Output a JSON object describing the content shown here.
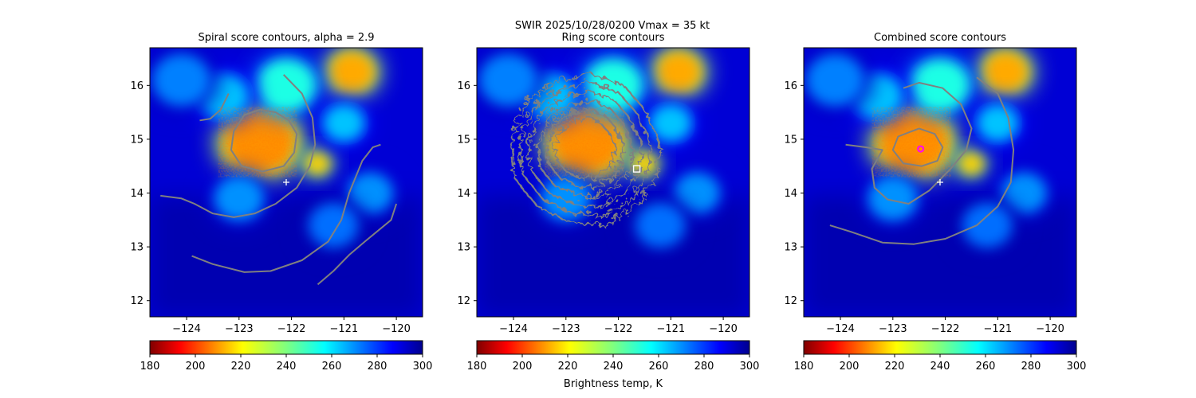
{
  "suptitle": "SWIR  2025/10/28/0200    Vmax = 35 kt",
  "colorbar_label": "Brightness temp, K",
  "chart_data": [
    {
      "type": "heatmap",
      "title": "Spiral score contours, alpha =  2.9",
      "xlim": [
        -124.7,
        -119.5
      ],
      "ylim": [
        11.7,
        16.7
      ],
      "xticks": [
        -124,
        -123,
        -122,
        -121,
        -120
      ],
      "yticks": [
        12,
        13,
        14,
        15,
        16
      ],
      "colorbar": {
        "range": [
          180,
          300
        ],
        "ticks": [
          180,
          200,
          220,
          240,
          260,
          280,
          300
        ],
        "colormap": "jet_r"
      },
      "marker": {
        "type": "plus",
        "color": "#ffffff",
        "lon": -122.1,
        "lat": 14.2
      },
      "contours": [
        {
          "name": "inner-ring",
          "color": "#808080",
          "points": [
            [
              -122.6,
              15.55
            ],
            [
              -122.3,
              15.5
            ],
            [
              -122.05,
              15.35
            ],
            [
              -121.9,
              15.1
            ],
            [
              -121.95,
              14.75
            ],
            [
              -122.15,
              14.5
            ],
            [
              -122.55,
              14.4
            ],
            [
              -122.95,
              14.5
            ],
            [
              -123.15,
              14.8
            ],
            [
              -123.1,
              15.15
            ],
            [
              -122.9,
              15.45
            ],
            [
              -122.6,
              15.55
            ]
          ]
        },
        {
          "name": "main-spiral",
          "color": "#808080",
          "points": [
            [
              -122.15,
              16.2
            ],
            [
              -121.8,
              15.85
            ],
            [
              -121.6,
              15.4
            ],
            [
              -121.55,
              14.9
            ],
            [
              -121.65,
              14.5
            ],
            [
              -121.9,
              14.1
            ],
            [
              -122.3,
              13.8
            ],
            [
              -122.7,
              13.62
            ],
            [
              -123.1,
              13.55
            ],
            [
              -123.5,
              13.62
            ],
            [
              -123.85,
              13.8
            ],
            [
              -124.1,
              13.9
            ],
            [
              -124.5,
              13.95
            ]
          ]
        },
        {
          "name": "upper-left-arc",
          "color": "#808080",
          "points": [
            [
              -123.2,
              15.85
            ],
            [
              -123.35,
              15.55
            ],
            [
              -123.55,
              15.38
            ],
            [
              -123.75,
              15.35
            ]
          ]
        },
        {
          "name": "outer-band",
          "color": "#808080",
          "points": [
            [
              -120.3,
              14.9
            ],
            [
              -120.45,
              14.85
            ],
            [
              -120.65,
              14.6
            ],
            [
              -120.9,
              14.0
            ],
            [
              -121.05,
              13.5
            ],
            [
              -121.3,
              13.1
            ],
            [
              -121.8,
              12.75
            ],
            [
              -122.4,
              12.55
            ],
            [
              -122.9,
              12.53
            ],
            [
              -123.5,
              12.68
            ],
            [
              -123.9,
              12.83
            ]
          ]
        },
        {
          "name": "east-band",
          "color": "#808080",
          "points": [
            [
              -120.0,
              13.8
            ],
            [
              -120.1,
              13.5
            ],
            [
              -120.6,
              13.1
            ],
            [
              -120.9,
              12.85
            ],
            [
              -121.2,
              12.55
            ],
            [
              -121.5,
              12.3
            ]
          ]
        }
      ]
    },
    {
      "type": "heatmap",
      "title": "Ring score contours",
      "xlim": [
        -124.7,
        -119.5
      ],
      "ylim": [
        11.7,
        16.7
      ],
      "xticks": [
        -124,
        -123,
        -122,
        -121,
        -120
      ],
      "yticks": [
        12,
        13,
        14,
        15,
        16
      ],
      "colorbar": {
        "range": [
          180,
          300
        ],
        "ticks": [
          180,
          200,
          220,
          240,
          260,
          280,
          300
        ],
        "colormap": "jet_r"
      },
      "marker": {
        "type": "square",
        "color": "#ffffff",
        "lon": -121.65,
        "lat": 14.45
      },
      "contours": [
        {
          "name": "ring-region",
          "color": "#808080",
          "shape": "dense-noisy",
          "points": [
            [
              -122.55,
              16.25
            ],
            [
              -121.95,
              16.05
            ],
            [
              -121.55,
              15.6
            ],
            [
              -121.25,
              14.95
            ],
            [
              -121.35,
              14.3
            ],
            [
              -121.7,
              13.8
            ],
            [
              -122.3,
              13.45
            ],
            [
              -122.95,
              13.5
            ],
            [
              -123.6,
              13.8
            ],
            [
              -124.05,
              14.35
            ],
            [
              -124.1,
              15.0
            ],
            [
              -123.8,
              15.75
            ],
            [
              -123.2,
              16.15
            ],
            [
              -122.55,
              16.25
            ]
          ]
        }
      ]
    },
    {
      "type": "heatmap",
      "title": "Combined score contours",
      "xlim": [
        -124.7,
        -119.5
      ],
      "ylim": [
        11.7,
        16.7
      ],
      "xticks": [
        -124,
        -123,
        -122,
        -121,
        -120
      ],
      "yticks": [
        12,
        13,
        14,
        15,
        16
      ],
      "colorbar": {
        "range": [
          180,
          300
        ],
        "ticks": [
          180,
          200,
          220,
          240,
          260,
          280,
          300
        ],
        "colormap": "jet_r"
      },
      "marker": {
        "type": "plus",
        "color": "#ffffff",
        "lon": -122.1,
        "lat": 14.2
      },
      "center_marker": {
        "type": "circle",
        "color": "#ff00ff",
        "lon": -122.47,
        "lat": 14.82
      },
      "contours": [
        {
          "name": "inner-ring",
          "color": "#808080",
          "points": [
            [
              -122.5,
              15.2
            ],
            [
              -122.2,
              15.1
            ],
            [
              -122.05,
              14.85
            ],
            [
              -122.15,
              14.6
            ],
            [
              -122.45,
              14.5
            ],
            [
              -122.8,
              14.55
            ],
            [
              -123.0,
              14.8
            ],
            [
              -122.9,
              15.05
            ],
            [
              -122.5,
              15.2
            ]
          ]
        },
        {
          "name": "middle-spiral",
          "color": "#808080",
          "points": [
            [
              -122.8,
              15.95
            ],
            [
              -122.5,
              16.05
            ],
            [
              -122.05,
              15.95
            ],
            [
              -121.7,
              15.65
            ],
            [
              -121.5,
              15.2
            ],
            [
              -121.6,
              14.8
            ],
            [
              -121.9,
              14.45
            ],
            [
              -122.3,
              14.05
            ],
            [
              -122.7,
              13.8
            ],
            [
              -123.1,
              13.88
            ],
            [
              -123.35,
              14.1
            ],
            [
              -123.4,
              14.45
            ],
            [
              -123.2,
              14.8
            ],
            [
              -123.5,
              14.85
            ],
            [
              -123.9,
              14.9
            ]
          ]
        },
        {
          "name": "outer-spiral",
          "color": "#808080",
          "points": [
            [
              -121.4,
              16.15
            ],
            [
              -121.0,
              15.85
            ],
            [
              -120.8,
              15.4
            ],
            [
              -120.7,
              14.8
            ],
            [
              -120.75,
              14.2
            ],
            [
              -121.0,
              13.75
            ],
            [
              -121.4,
              13.4
            ],
            [
              -122.0,
              13.15
            ],
            [
              -122.6,
              13.05
            ],
            [
              -123.2,
              13.08
            ],
            [
              -123.8,
              13.28
            ],
            [
              -124.2,
              13.4
            ]
          ]
        }
      ]
    }
  ]
}
